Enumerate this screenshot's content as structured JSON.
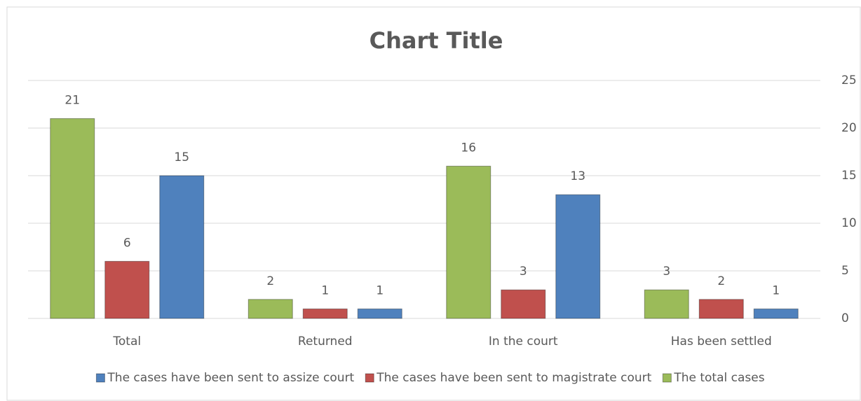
{
  "chart_data": {
    "type": "bar",
    "title": "Chart Title",
    "categories": [
      "Total",
      "Returned",
      "In the court",
      "Has been settled"
    ],
    "series": [
      {
        "name": "The total cases",
        "color": "#9bbb59",
        "values": [
          21,
          2,
          16,
          3
        ]
      },
      {
        "name": "The cases have been sent to magistrate court",
        "color": "#c0504d",
        "values": [
          6,
          1,
          3,
          2
        ]
      },
      {
        "name": "The cases have been sent to assize court",
        "color": "#4f81bd",
        "values": [
          15,
          1,
          13,
          1
        ]
      }
    ],
    "ylim": [
      0,
      25
    ],
    "yticks": [
      0,
      5,
      10,
      15,
      20,
      25
    ],
    "y_axis_side": "right",
    "grid": true,
    "legend": "bottom"
  }
}
